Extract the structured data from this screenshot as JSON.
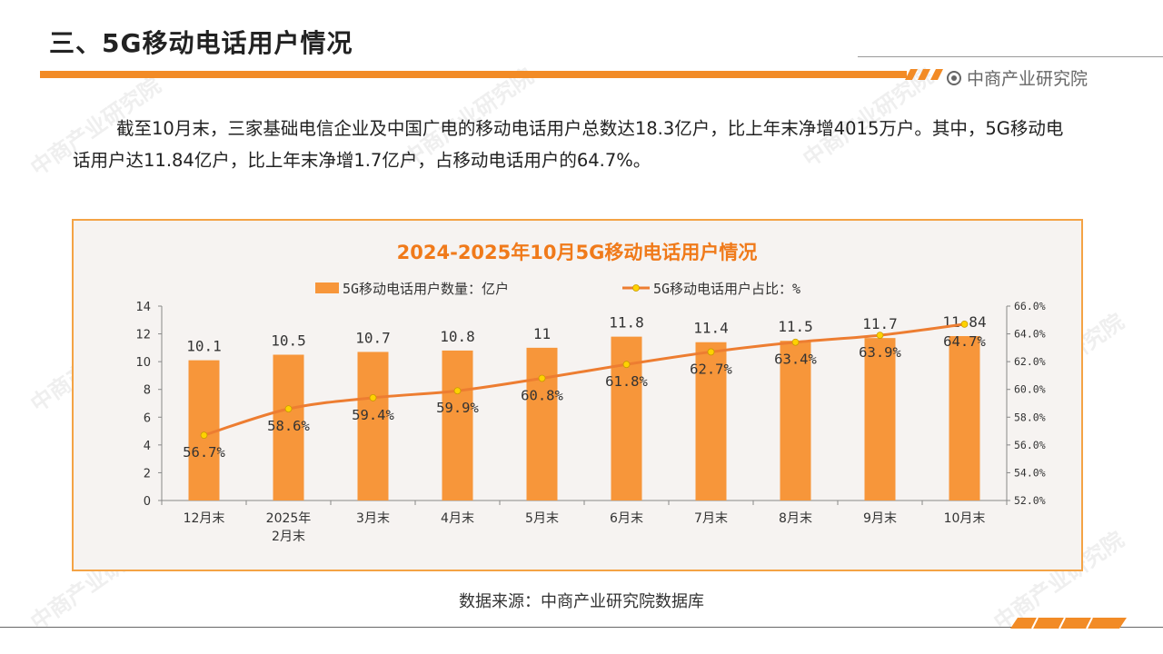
{
  "header": {
    "title": "三、5G移动电话用户情况",
    "brand": "中商产业研究院"
  },
  "paragraph": "截至10月末，三家基础电信企业及中国广电的移动电话用户总数达18.3亿户，比上年末净增4015万户。其中，5G移动电话用户达11.84亿户，比上年末净增1.7亿户，占移动电话用户的64.7%。",
  "watermark": "中商产业研究院",
  "colors": {
    "accent": "#f28b26",
    "bar": "#f7963a",
    "line": "#ed7d31",
    "marker": "#ffd200",
    "title": "#f07a1a"
  },
  "chart_data": {
    "type": "bar+line",
    "title": "2024-2025年10月5G移动电话用户情况",
    "categories": [
      "12月末",
      "2025年\n2月末",
      "3月末",
      "4月末",
      "5月末",
      "6月末",
      "7月末",
      "8月末",
      "9月末",
      "10月末"
    ],
    "series": [
      {
        "name": "5G移动电话用户数量：亿户",
        "type": "bar",
        "axis": "left",
        "values": [
          10.1,
          10.5,
          10.7,
          10.8,
          11,
          11.8,
          11.4,
          11.5,
          11.7,
          11.84
        ],
        "labels": [
          "10.1",
          "10.5",
          "10.7",
          "10.8",
          "11",
          "11.8",
          "11.4",
          "11.5",
          "11.7",
          "11.84"
        ]
      },
      {
        "name": "5G移动电话用户占比：%",
        "type": "line",
        "axis": "right",
        "values": [
          56.7,
          58.6,
          59.4,
          59.9,
          60.8,
          61.8,
          62.7,
          63.4,
          63.9,
          64.7
        ],
        "labels": [
          "56.7%",
          "58.6%",
          "59.4%",
          "59.9%",
          "60.8%",
          "61.8%",
          "62.7%",
          "63.4%",
          "63.9%",
          "64.7%"
        ]
      }
    ],
    "y_left": {
      "min": 0,
      "max": 14,
      "step": 2,
      "ticks": [
        "0",
        "2",
        "4",
        "6",
        "8",
        "10",
        "12",
        "14"
      ]
    },
    "y_right": {
      "min": 52,
      "max": 66,
      "step": 2,
      "ticks": [
        "52.0%",
        "54.0%",
        "56.0%",
        "58.0%",
        "60.0%",
        "62.0%",
        "64.0%",
        "66.0%"
      ]
    },
    "legend": "top"
  },
  "footer": {
    "source": "数据来源：中商产业研究院数据库"
  }
}
